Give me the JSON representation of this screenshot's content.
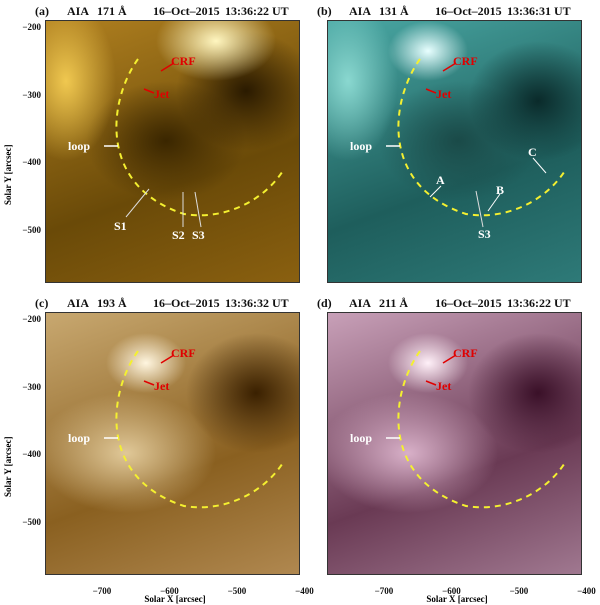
{
  "panels": [
    {
      "id": "a",
      "letter": "(a)",
      "instrument": "AIA",
      "wavelength": "171 Å",
      "date": "16–Oct–2015",
      "time": "13:36:22 UT",
      "color": "#b8860b",
      "labels": {
        "crf": "CRF",
        "jet": "Jet",
        "loop": "loop",
        "s1": "S1",
        "s2": "S2",
        "s3": "S3"
      }
    },
    {
      "id": "b",
      "letter": "(b)",
      "instrument": "AIA",
      "wavelength": "131 Å",
      "date": "16–Oct–2015",
      "time": "13:36:31 UT",
      "color": "#3a9a98",
      "labels": {
        "crf": "CRF",
        "jet": "Jet",
        "loop": "loop",
        "a": "A",
        "b": "B",
        "c": "C",
        "s3": "S3"
      }
    },
    {
      "id": "c",
      "letter": "(c)",
      "instrument": "AIA",
      "wavelength": "193 Å",
      "date": "16–Oct–2015",
      "time": "13:36:32 UT",
      "color": "#a87838",
      "labels": {
        "crf": "CRF",
        "jet": "Jet",
        "loop": "loop"
      }
    },
    {
      "id": "d",
      "letter": "(d)",
      "instrument": "AIA",
      "wavelength": "211 Å",
      "date": "16–Oct–2015",
      "time": "13:36:22 UT",
      "color": "#8a5a72",
      "labels": {
        "crf": "CRF",
        "jet": "Jet",
        "loop": "loop"
      }
    }
  ],
  "axes": {
    "ylabel": "Solar Y [arcsec]",
    "xlabel": "Solar X [arcsec]",
    "yticks": [
      "−200",
      "−300",
      "−400",
      "−500"
    ],
    "xticks": [
      "−700",
      "−600",
      "−500",
      "−400"
    ]
  }
}
